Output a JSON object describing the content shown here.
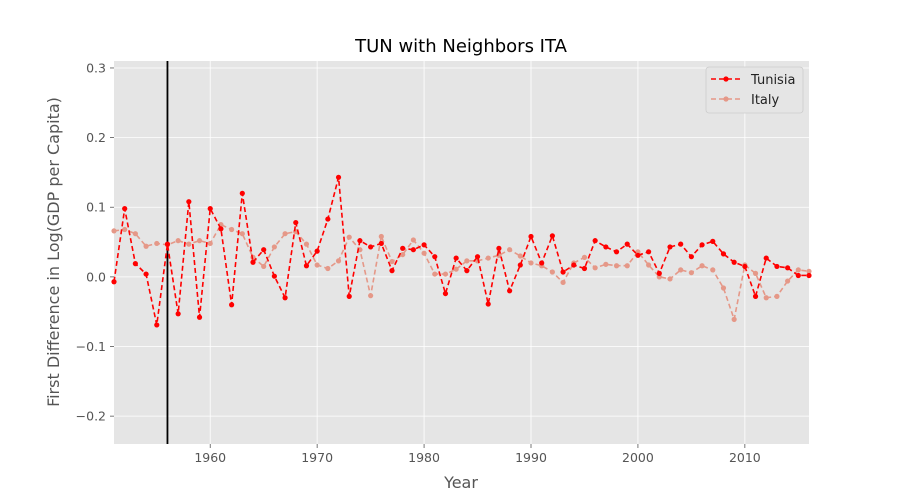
{
  "chart_data": {
    "type": "line",
    "title": "TUN with Neighbors ITA",
    "xlabel": "Year",
    "ylabel": "First Difference in Log(GDP per Capita)",
    "xlim": [
      1951,
      2016
    ],
    "ylim": [
      -0.24,
      0.31
    ],
    "xticks": [
      1960,
      1970,
      1980,
      1990,
      2000,
      2010
    ],
    "yticks": [
      -0.2,
      -0.1,
      0.0,
      0.1,
      0.2,
      0.3
    ],
    "ytick_labels": [
      "−0.2",
      "−0.1",
      "0.0",
      "0.1",
      "0.2",
      "0.3"
    ],
    "grid": true,
    "legend_position": "top-right",
    "vertical_line_year": 1956,
    "x": [
      1951,
      1952,
      1953,
      1954,
      1955,
      1956,
      1957,
      1958,
      1959,
      1960,
      1961,
      1962,
      1963,
      1964,
      1965,
      1966,
      1967,
      1968,
      1969,
      1970,
      1971,
      1972,
      1973,
      1974,
      1975,
      1976,
      1977,
      1978,
      1979,
      1980,
      1981,
      1982,
      1983,
      1984,
      1985,
      1986,
      1987,
      1988,
      1989,
      1990,
      1991,
      1992,
      1993,
      1994,
      1995,
      1996,
      1997,
      1998,
      1999,
      2000,
      2001,
      2002,
      2003,
      2004,
      2005,
      2006,
      2007,
      2008,
      2009,
      2010,
      2011,
      2012,
      2013,
      2014,
      2015,
      2016
    ],
    "series": [
      {
        "name": "Tunisia",
        "color": "#ff0000",
        "style": "dashed",
        "values": [
          -0.007,
          0.098,
          0.019,
          0.004,
          -0.069,
          0.047,
          -0.053,
          0.108,
          -0.058,
          0.098,
          0.069,
          -0.04,
          0.12,
          0.021,
          0.039,
          0.001,
          -0.03,
          0.078,
          0.016,
          0.037,
          0.083,
          0.143,
          -0.028,
          0.052,
          0.043,
          0.048,
          0.009,
          0.041,
          0.039,
          0.046,
          0.029,
          -0.024,
          0.027,
          0.009,
          0.029,
          -0.039,
          0.041,
          -0.02,
          0.017,
          0.058,
          0.02,
          0.059,
          0.007,
          0.017,
          0.012,
          0.052,
          0.043,
          0.036,
          0.047,
          0.031,
          0.036,
          0.005,
          0.043,
          0.047,
          0.029,
          0.046,
          0.051,
          0.033,
          0.021,
          0.015,
          -0.028,
          0.027,
          0.015,
          0.013,
          0.002,
          0.002
        ]
      },
      {
        "name": "Italy",
        "color": "#e59888",
        "style": "dashed",
        "values": [
          0.066,
          0.068,
          0.062,
          0.044,
          0.048,
          0.046,
          0.052,
          0.047,
          0.052,
          0.048,
          0.075,
          0.068,
          0.062,
          0.028,
          0.015,
          0.043,
          0.062,
          0.065,
          0.047,
          0.017,
          0.012,
          0.023,
          0.057,
          0.039,
          -0.027,
          0.058,
          0.022,
          0.032,
          0.053,
          0.034,
          0.004,
          0.004,
          0.011,
          0.023,
          0.023,
          0.027,
          0.031,
          0.039,
          0.03,
          0.02,
          0.016,
          0.007,
          -0.008,
          0.02,
          0.028,
          0.013,
          0.018,
          0.016,
          0.016,
          0.036,
          0.017,
          0.0,
          -0.003,
          0.01,
          0.006,
          0.016,
          0.01,
          -0.016,
          -0.061,
          0.017,
          0.005,
          -0.03,
          -0.028,
          -0.006,
          0.01,
          0.008
        ]
      }
    ]
  }
}
